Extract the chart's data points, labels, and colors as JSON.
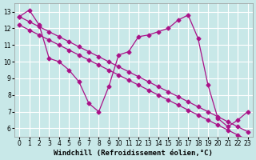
{
  "bg_color": "#c8e8e8",
  "grid_color": "#ffffff",
  "line_color": "#aa1188",
  "xlabel": "Windchill (Refroidissement éolien,°C)",
  "xlim": [
    -0.5,
    23.5
  ],
  "ylim": [
    5.5,
    13.5
  ],
  "yticks": [
    6,
    7,
    8,
    9,
    10,
    11,
    12,
    13
  ],
  "xticks": [
    0,
    1,
    2,
    3,
    4,
    5,
    6,
    7,
    8,
    9,
    10,
    11,
    12,
    13,
    14,
    15,
    16,
    17,
    18,
    19,
    20,
    21,
    22,
    23
  ],
  "curve_jagged_x": [
    0,
    1,
    2,
    3,
    4,
    5,
    6,
    7,
    8,
    9,
    10,
    11,
    12,
    13,
    14,
    15,
    16,
    17,
    18,
    19,
    20,
    21,
    22,
    23
  ],
  "curve_jagged_y": [
    12.7,
    13.1,
    12.2,
    10.2,
    10.0,
    9.5,
    8.8,
    7.5,
    7.0,
    8.5,
    10.4,
    10.6,
    11.5,
    11.6,
    11.8,
    12.0,
    12.5,
    12.8,
    11.4,
    8.6,
    6.6,
    6.1,
    6.5,
    7.0
  ],
  "trend_upper_x": [
    0,
    1,
    2,
    3,
    4,
    5,
    6,
    7,
    8,
    9,
    10,
    11,
    12,
    13,
    14,
    15,
    16,
    17,
    18,
    19,
    20,
    21,
    22,
    23
  ],
  "trend_upper_y": [
    12.7,
    12.4,
    12.1,
    11.8,
    11.5,
    11.2,
    10.9,
    10.6,
    10.3,
    10.0,
    9.7,
    9.4,
    9.1,
    8.8,
    8.5,
    8.2,
    7.9,
    7.6,
    7.3,
    7.0,
    6.7,
    6.4,
    6.1,
    5.8
  ],
  "trend_lower_x": [
    0,
    1,
    2,
    3,
    4,
    5,
    6,
    7,
    8,
    9,
    10,
    11,
    12,
    13,
    14,
    15,
    16,
    17,
    18,
    19,
    20,
    21,
    22,
    23
  ],
  "trend_lower_y": [
    12.2,
    11.9,
    11.6,
    11.3,
    11.0,
    10.7,
    10.4,
    10.1,
    9.8,
    9.5,
    9.2,
    8.9,
    8.6,
    8.3,
    8.0,
    7.7,
    7.4,
    7.1,
    6.8,
    6.5,
    6.2,
    5.9,
    5.6,
    5.3
  ],
  "marker": "D",
  "markersize": 2.5,
  "linewidth": 0.9,
  "tick_fontsize": 5.5,
  "xlabel_fontsize": 6.5
}
